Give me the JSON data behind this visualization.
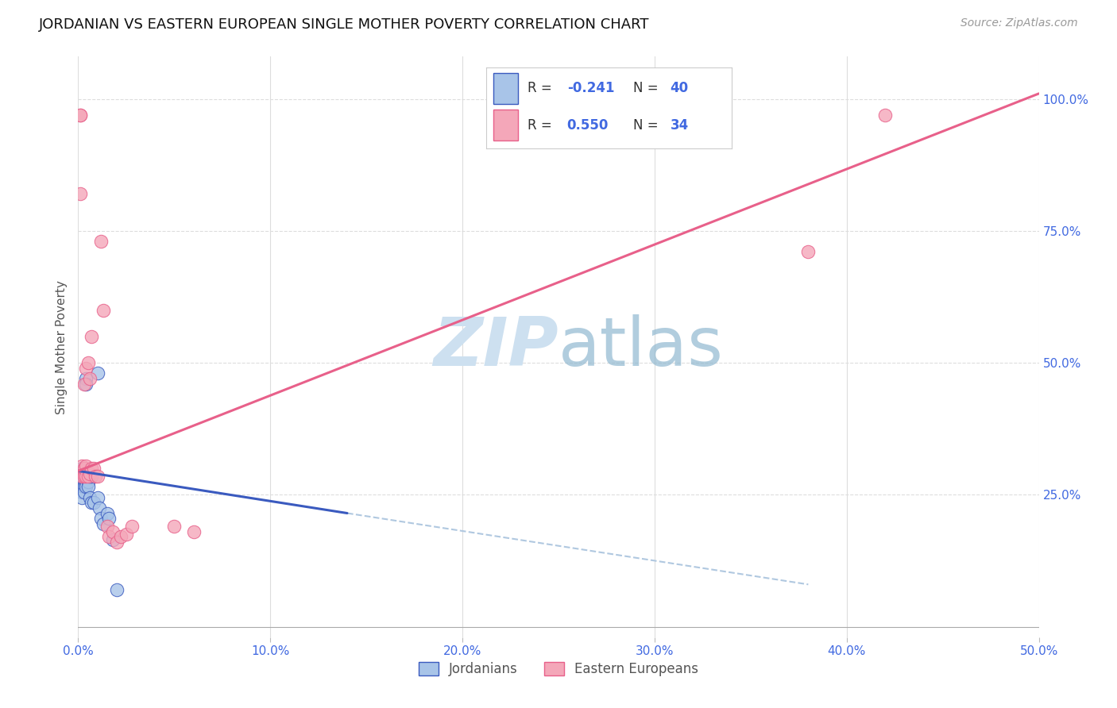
{
  "title": "JORDANIAN VS EASTERN EUROPEAN SINGLE MOTHER POVERTY CORRELATION CHART",
  "source": "Source: ZipAtlas.com",
  "ylabel": "Single Mother Poverty",
  "xlim": [
    0.0,
    0.5
  ],
  "ylim": [
    -0.02,
    1.08
  ],
  "xtick_vals": [
    0.0,
    0.1,
    0.2,
    0.3,
    0.4,
    0.5
  ],
  "ytick_vals": [
    0.25,
    0.5,
    0.75,
    1.0
  ],
  "R1": "-0.241",
  "N1": "40",
  "R2": "0.550",
  "N2": "34",
  "jordanian_color": "#a8c4e8",
  "eastern_color": "#f4a7b9",
  "jordanian_line_color": "#3a5abf",
  "eastern_line_color": "#e8608a",
  "trendline_ext_color": "#b0c8e0",
  "background_color": "#ffffff",
  "grid_color": "#dddddd",
  "watermark_color": "#cde0f0",
  "title_color": "#111111",
  "source_color": "#999999",
  "axis_label_color": "#4169e1",
  "legend_label1": "Jordanians",
  "legend_label2": "Eastern Europeans",
  "jordanian_x": [
    0.001,
    0.001,
    0.001,
    0.001,
    0.001,
    0.002,
    0.002,
    0.002,
    0.002,
    0.002,
    0.002,
    0.002,
    0.003,
    0.003,
    0.003,
    0.003,
    0.003,
    0.003,
    0.004,
    0.004,
    0.004,
    0.004,
    0.004,
    0.005,
    0.005,
    0.005,
    0.006,
    0.006,
    0.007,
    0.007,
    0.008,
    0.01,
    0.01,
    0.011,
    0.012,
    0.013,
    0.015,
    0.016,
    0.018,
    0.02
  ],
  "jordanian_y": [
    0.285,
    0.295,
    0.285,
    0.275,
    0.265,
    0.3,
    0.295,
    0.285,
    0.275,
    0.265,
    0.255,
    0.245,
    0.3,
    0.295,
    0.285,
    0.275,
    0.265,
    0.255,
    0.47,
    0.46,
    0.285,
    0.275,
    0.265,
    0.285,
    0.275,
    0.265,
    0.285,
    0.245,
    0.285,
    0.235,
    0.235,
    0.48,
    0.245,
    0.225,
    0.205,
    0.195,
    0.215,
    0.205,
    0.165,
    0.07
  ],
  "eastern_x": [
    0.001,
    0.001,
    0.001,
    0.002,
    0.002,
    0.003,
    0.003,
    0.003,
    0.003,
    0.004,
    0.004,
    0.004,
    0.005,
    0.005,
    0.006,
    0.006,
    0.007,
    0.007,
    0.008,
    0.009,
    0.01,
    0.012,
    0.013,
    0.015,
    0.016,
    0.018,
    0.02,
    0.022,
    0.025,
    0.028,
    0.05,
    0.06,
    0.38,
    0.42
  ],
  "eastern_y": [
    0.97,
    0.97,
    0.82,
    0.305,
    0.285,
    0.29,
    0.285,
    0.3,
    0.46,
    0.285,
    0.305,
    0.49,
    0.5,
    0.285,
    0.47,
    0.29,
    0.55,
    0.3,
    0.3,
    0.285,
    0.285,
    0.73,
    0.6,
    0.19,
    0.17,
    0.18,
    0.16,
    0.17,
    0.175,
    0.19,
    0.19,
    0.18,
    0.71,
    0.97
  ],
  "j_trend_x0": 0.0,
  "j_trend_y0": 0.295,
  "j_trend_x1": 0.14,
  "j_trend_y1": 0.215,
  "j_trend_ext_x1": 0.38,
  "j_trend_ext_y1": 0.08,
  "e_trend_x0": 0.0,
  "e_trend_y0": 0.295,
  "e_trend_x1": 0.5,
  "e_trend_y1": 1.01
}
